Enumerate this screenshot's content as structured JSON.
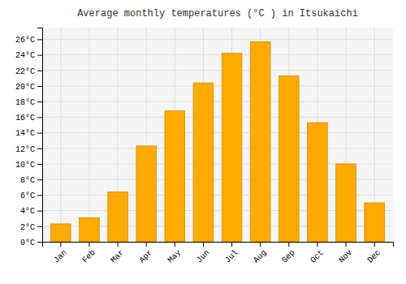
{
  "chart_data": {
    "type": "bar",
    "title": "Average monthly temperatures (°C ) in Itsukaichi",
    "categories": [
      "Jan",
      "Feb",
      "Mar",
      "Apr",
      "May",
      "Jun",
      "Jul",
      "Aug",
      "Sep",
      "Oct",
      "Nov",
      "Dec"
    ],
    "values": [
      2.3,
      3.1,
      6.4,
      12.3,
      16.8,
      20.4,
      24.2,
      25.7,
      21.3,
      15.3,
      10.0,
      5.0
    ],
    "color": "#FFAA00",
    "ylim": [
      0,
      27.5
    ],
    "yticks": [
      {
        "value": 0,
        "label": "0°C"
      },
      {
        "value": 2,
        "label": "2°C"
      },
      {
        "value": 4,
        "label": "4°C"
      },
      {
        "value": 6,
        "label": "6°C"
      },
      {
        "value": 8,
        "label": "8°C"
      },
      {
        "value": 10,
        "label": "10°C"
      },
      {
        "value": 12,
        "label": "12°C"
      },
      {
        "value": 14,
        "label": "14°C"
      },
      {
        "value": 16,
        "label": "16°C"
      },
      {
        "value": 18,
        "label": "18°C"
      },
      {
        "value": 20,
        "label": "20°C"
      },
      {
        "value": 22,
        "label": "22°C"
      },
      {
        "value": 24,
        "label": "24°C"
      },
      {
        "value": 26,
        "label": "26°C"
      }
    ],
    "grid": true
  }
}
